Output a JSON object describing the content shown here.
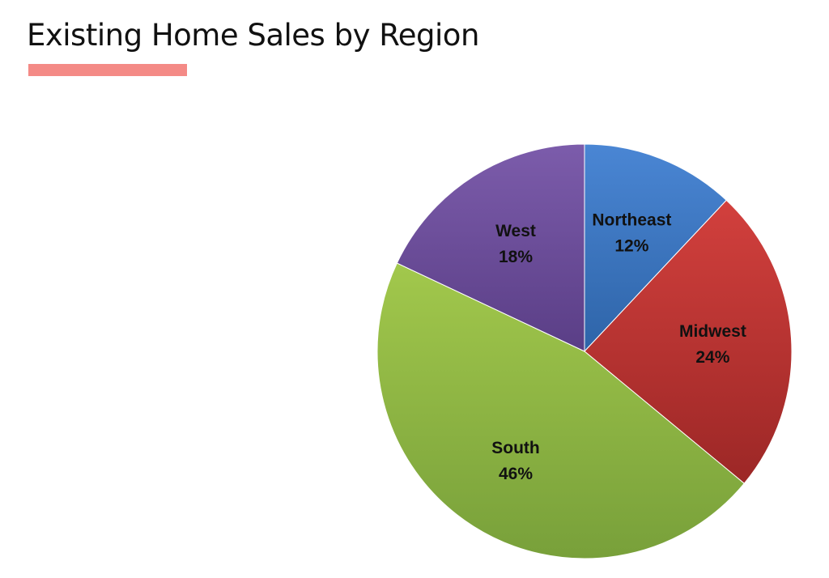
{
  "title": "Existing Home Sales by Region",
  "colors": {
    "title_underline": "#f48a86"
  },
  "chart_data": {
    "type": "pie",
    "title": "",
    "slices": [
      {
        "label": "Northeast",
        "value": 12,
        "value_label": "12%",
        "color_light": "#4a86d4",
        "color_dark": "#2e64a8"
      },
      {
        "label": "Midwest",
        "value": 24,
        "value_label": "24%",
        "color_light": "#d2403d",
        "color_dark": "#9c2726"
      },
      {
        "label": "South",
        "value": 46,
        "value_label": "46%",
        "color_light": "#a2c84c",
        "color_dark": "#78a03a"
      },
      {
        "label": "West",
        "value": 18,
        "value_label": "18%",
        "color_light": "#7c5cab",
        "color_dark": "#5a3e86"
      }
    ],
    "start_angle_deg": 0,
    "direction": "clockwise",
    "legend": "none",
    "data_labels": "inside"
  }
}
